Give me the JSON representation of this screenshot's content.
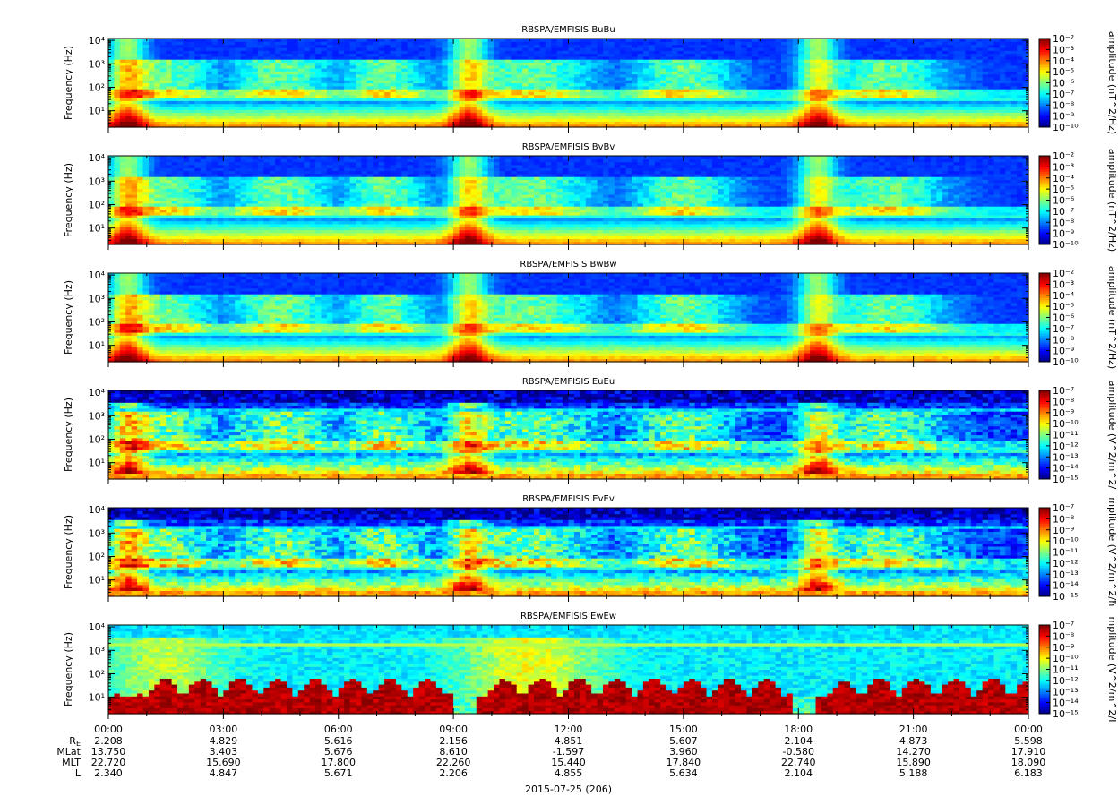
{
  "date_label": "2015-07-25 (206)",
  "colors": {
    "background": "#ffffff",
    "spectrogram_low": "#0a00a0",
    "spectrogram_high": "#ff0000"
  },
  "chart_data": [
    {
      "type": "heatmap",
      "title": "RBSPA/EMFISIS  BuBu",
      "ylabel": "Frequency (Hz)",
      "yscale": "log",
      "ylim": [
        2,
        12000
      ],
      "yticks": [
        10,
        100,
        1000,
        10000
      ],
      "yticklabels": [
        "10¹",
        "10²",
        "10³",
        "10⁴"
      ],
      "colorbar_label": "amplitude (nT^2/Hz)",
      "clim": [
        -10,
        -2
      ],
      "colorbar_ticks": [
        "10⁻²",
        "10⁻³",
        "10⁻⁴",
        "10⁻⁵",
        "10⁻⁶",
        "10⁻⁷",
        "10⁻⁸",
        "10⁻⁹",
        "10⁻¹⁰"
      ],
      "variant": "B"
    },
    {
      "type": "heatmap",
      "title": "RBSPA/EMFISIS  BvBv",
      "ylabel": "Frequency (Hz)",
      "yscale": "log",
      "ylim": [
        2,
        12000
      ],
      "yticks": [
        10,
        100,
        1000,
        10000
      ],
      "yticklabels": [
        "10¹",
        "10²",
        "10³",
        "10⁴"
      ],
      "colorbar_label": "amplitude (nT^2/Hz)",
      "clim": [
        -10,
        -2
      ],
      "colorbar_ticks": [
        "10⁻²",
        "10⁻³",
        "10⁻⁴",
        "10⁻⁵",
        "10⁻⁶",
        "10⁻⁷",
        "10⁻⁸",
        "10⁻⁹",
        "10⁻¹⁰"
      ],
      "variant": "B"
    },
    {
      "type": "heatmap",
      "title": "RBSPA/EMFISIS  BwBw",
      "ylabel": "Frequency (Hz)",
      "yscale": "log",
      "ylim": [
        2,
        12000
      ],
      "yticks": [
        10,
        100,
        1000,
        10000
      ],
      "yticklabels": [
        "10¹",
        "10²",
        "10³",
        "10⁴"
      ],
      "colorbar_label": "amplitude (nT^2/Hz)",
      "clim": [
        -10,
        -2
      ],
      "colorbar_ticks": [
        "10⁻²",
        "10⁻³",
        "10⁻⁴",
        "10⁻⁵",
        "10⁻⁶",
        "10⁻⁷",
        "10⁻⁸",
        "10⁻⁹",
        "10⁻¹⁰"
      ],
      "variant": "B"
    },
    {
      "type": "heatmap",
      "title": "RBSPA/EMFISIS  EuEu",
      "ylabel": "Frequency (Hz)",
      "yscale": "log",
      "ylim": [
        2,
        12000
      ],
      "yticks": [
        10,
        100,
        1000,
        10000
      ],
      "yticklabels": [
        "10¹",
        "10²",
        "10³",
        "10⁴"
      ],
      "colorbar_label": "amplitude (V^2/m^2/",
      "clim": [
        -15,
        -7
      ],
      "colorbar_ticks": [
        "10⁻⁷",
        "10⁻⁸",
        "10⁻⁹",
        "10⁻¹⁰",
        "10⁻¹¹",
        "10⁻¹²",
        "10⁻¹³",
        "10⁻¹⁴",
        "10⁻¹⁵"
      ],
      "variant": "E"
    },
    {
      "type": "heatmap",
      "title": "RBSPA/EMFISIS  EvEv",
      "ylabel": "Frequency (Hz)",
      "yscale": "log",
      "ylim": [
        2,
        12000
      ],
      "yticks": [
        10,
        100,
        1000,
        10000
      ],
      "yticklabels": [
        "10¹",
        "10²",
        "10³",
        "10⁴"
      ],
      "colorbar_label": "mplitude (V^2/m^2/ħ",
      "clim": [
        -15,
        -7
      ],
      "colorbar_ticks": [
        "10⁻⁷",
        "10⁻⁸",
        "10⁻⁹",
        "10⁻¹⁰",
        "10⁻¹¹",
        "10⁻¹²",
        "10⁻¹³",
        "10⁻¹⁴",
        "10⁻¹⁵"
      ],
      "variant": "E"
    },
    {
      "type": "heatmap",
      "title": "RBSPA/EMFISIS  EwEw",
      "ylabel": "Frequency (Hz)",
      "yscale": "log",
      "ylim": [
        2,
        12000
      ],
      "yticks": [
        10,
        100,
        1000,
        10000
      ],
      "yticklabels": [
        "10¹",
        "10²",
        "10³",
        "10⁴"
      ],
      "colorbar_label": "mplitude (V^2/m^2/I",
      "clim": [
        -15,
        -7
      ],
      "colorbar_ticks": [
        "10⁻⁷",
        "10⁻⁸",
        "10⁻⁹",
        "10⁻¹⁰",
        "10⁻¹¹",
        "10⁻¹²",
        "10⁻¹³",
        "10⁻¹⁴",
        "10⁻¹⁵"
      ],
      "variant": "Ew"
    }
  ],
  "time_axis": {
    "range_hours": [
      0,
      24
    ],
    "ticks": [
      {
        "hour": 0,
        "label": "00:00"
      },
      {
        "hour": 3,
        "label": "03:00"
      },
      {
        "hour": 6,
        "label": "06:00"
      },
      {
        "hour": 9,
        "label": "09:00"
      },
      {
        "hour": 12,
        "label": "12:00"
      },
      {
        "hour": 15,
        "label": "15:00"
      },
      {
        "hour": 18,
        "label": "18:00"
      },
      {
        "hour": 21,
        "label": "21:00"
      },
      {
        "hour": 24,
        "label": "00:00"
      }
    ],
    "minor_step_hours": 1
  },
  "ephemeris": [
    {
      "label": "R",
      "sub": "E",
      "values": [
        "2.208",
        "4.829",
        "5.616",
        "2.156",
        "4.851",
        "5.607",
        "2.104",
        "4.873",
        "5.598"
      ]
    },
    {
      "label": "MLat",
      "sub": "",
      "values": [
        "13.750",
        "3.403",
        "5.676",
        "8.610",
        "-1.597",
        "3.960",
        "-0.580",
        "14.270",
        "17.910"
      ]
    },
    {
      "label": "MLT",
      "sub": "",
      "values": [
        "22.720",
        "15.690",
        "17.800",
        "22.260",
        "15.440",
        "17.840",
        "22.740",
        "15.890",
        "18.090"
      ]
    },
    {
      "label": "L",
      "sub": "",
      "values": [
        "2.340",
        "4.847",
        "5.671",
        "2.206",
        "4.855",
        "5.634",
        "2.104",
        "5.188",
        "6.183"
      ]
    }
  ]
}
